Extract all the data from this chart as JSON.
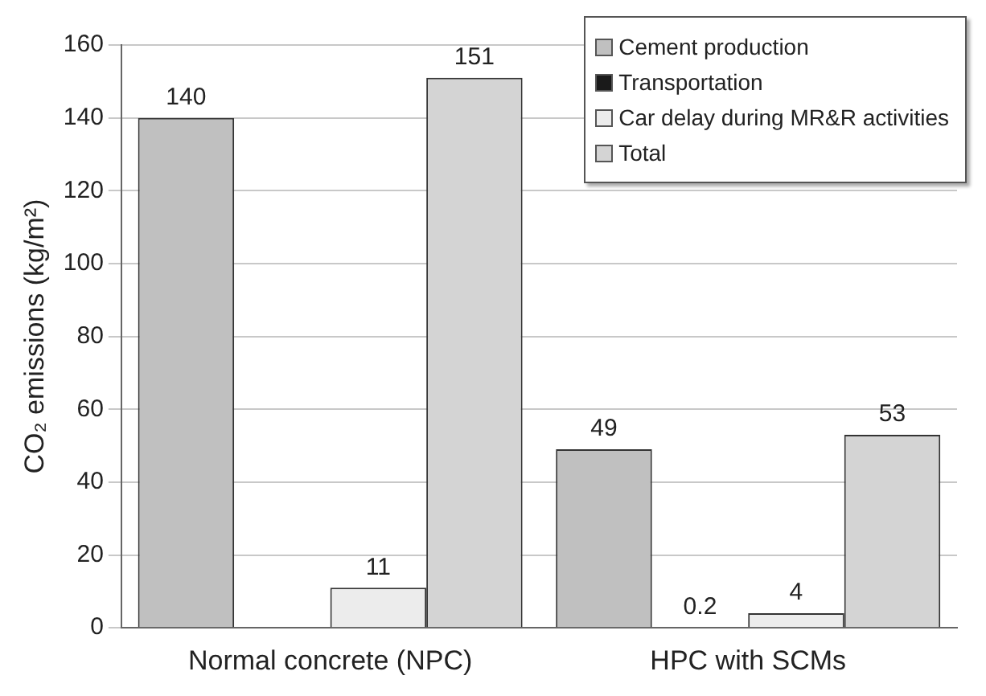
{
  "chart_data": {
    "type": "bar",
    "ylabel": "CO₂ emissions (kg/m²)",
    "categories": [
      "Normal concrete (NPC)",
      "HPC with SCMs"
    ],
    "series": [
      {
        "name": "Cement production",
        "color": "#c0c0c0",
        "values": [
          140,
          49
        ],
        "value_labels": [
          "140",
          "49"
        ]
      },
      {
        "name": "Transportation",
        "color": "#1a1a1a",
        "values": [
          null,
          0.2
        ],
        "value_labels": [
          null,
          "0.2"
        ]
      },
      {
        "name": "Car delay during MR&R activities",
        "color": "#ececec",
        "values": [
          11,
          4
        ],
        "value_labels": [
          "11",
          "4"
        ]
      },
      {
        "name": "Total",
        "color": "#d4d4d4",
        "values": [
          151,
          53
        ],
        "value_labels": [
          "151",
          "53"
        ]
      }
    ],
    "ylim": [
      0,
      160
    ],
    "yticks": [
      0,
      20,
      40,
      60,
      80,
      100,
      120,
      140,
      160
    ],
    "grid": "y",
    "legend": "top right"
  }
}
